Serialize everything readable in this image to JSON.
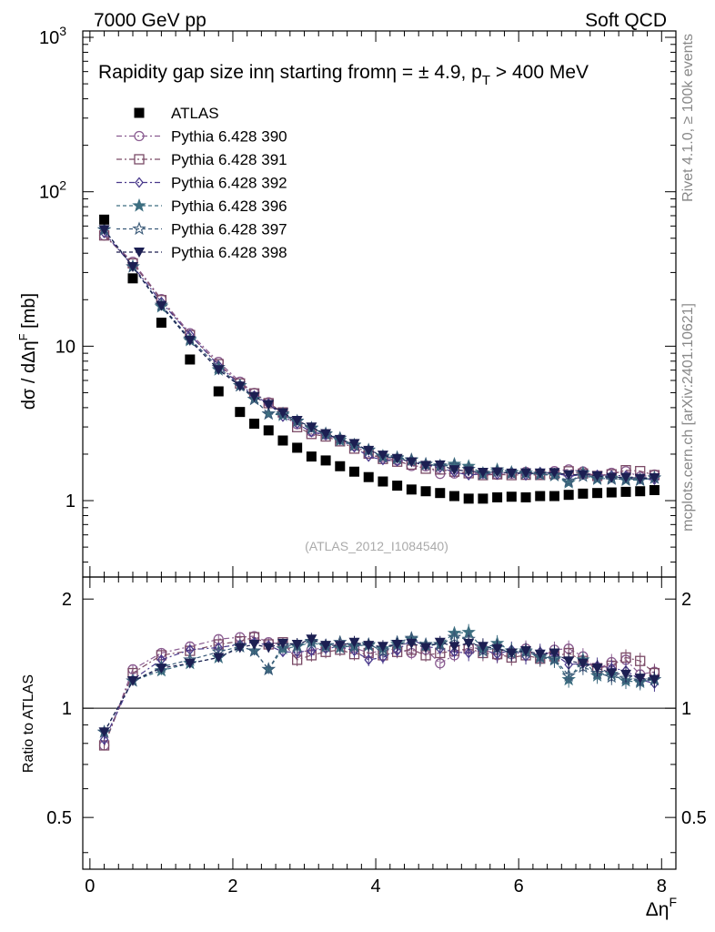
{
  "header": {
    "left": "7000 GeV pp",
    "right": "Soft QCD"
  },
  "side": {
    "rivet": "Rivet 4.1.0, ≥ 100k events",
    "mcplots": "mcplots.cern.ch [arXiv:2401.10621]"
  },
  "chart_data": {
    "type": "line",
    "title_parts": {
      "main": "Rapidity gap size in",
      "eta1": "η",
      "mid": " starting from",
      "eta2": "η",
      "cond": " = ± 4.9, p",
      "sub": "T",
      "tail": " > 400 MeV"
    },
    "analysis_label": "(ATLAS_2012_I1084540)",
    "xlabel": "Δη",
    "xlabel_sup": "F",
    "ylabel_main": "dσ / dΔη",
    "ylabel_sup": "F",
    "ylabel_unit": " [mb]",
    "ratio_ylabel": "Ratio to ATLAS",
    "xlim": [
      -0.1,
      8.2
    ],
    "ylim": [
      0.32,
      1100
    ],
    "ratio_ylim": [
      0.36,
      2.3
    ],
    "yscale": "log",
    "x_ticks": [
      0,
      2,
      4,
      6,
      8
    ],
    "y_tick_labels": [
      {
        "value": 1,
        "label": "1"
      },
      {
        "value": 10,
        "label": "10"
      },
      {
        "value": 100,
        "label": "10",
        "sup": "2"
      },
      {
        "value": 1000,
        "label": "10",
        "sup": "3"
      }
    ],
    "ratio_tick_labels": [
      {
        "value": 0.5,
        "label": "0.5"
      },
      {
        "value": 1,
        "label": "1"
      },
      {
        "value": 2,
        "label": "2"
      }
    ],
    "x": [
      0.2,
      0.6,
      1.0,
      1.4,
      1.8,
      2.1,
      2.3,
      2.5,
      2.7,
      2.9,
      3.1,
      3.3,
      3.5,
      3.7,
      3.9,
      4.1,
      4.3,
      4.5,
      4.7,
      4.9,
      5.1,
      5.3,
      5.5,
      5.7,
      5.9,
      6.1,
      6.3,
      6.5,
      6.7,
      6.9,
      7.1,
      7.3,
      7.5,
      7.7,
      7.9
    ],
    "reference": {
      "name": "ATLAS",
      "values": [
        66,
        27.5,
        14.2,
        8.2,
        5.1,
        3.75,
        3.15,
        2.85,
        2.45,
        2.2,
        1.93,
        1.82,
        1.67,
        1.54,
        1.42,
        1.33,
        1.25,
        1.18,
        1.15,
        1.12,
        1.07,
        1.03,
        1.03,
        1.05,
        1.06,
        1.05,
        1.07,
        1.07,
        1.09,
        1.11,
        1.12,
        1.13,
        1.14,
        1.15,
        1.17
      ]
    },
    "series": [
      {
        "name": "Pythia 6.428 390",
        "marker": "circle-open",
        "color": "#8a5c91",
        "dash": "6,3,2,3",
        "ratio": [
          0.79,
          1.28,
          1.42,
          1.48,
          1.55,
          1.57,
          1.58,
          1.52,
          1.5,
          1.42,
          1.45,
          1.47,
          1.49,
          1.47,
          1.42,
          1.44,
          1.46,
          1.42,
          1.45,
          1.33,
          1.4,
          1.47,
          1.46,
          1.4,
          1.41,
          1.46,
          1.38,
          1.45,
          1.46,
          1.39,
          1.28,
          1.34,
          1.36,
          1.24,
          1.26
        ]
      },
      {
        "name": "Pythia 6.428 391",
        "marker": "square-open",
        "color": "#7a4a66",
        "dash": "6,3,2,3",
        "ratio": [
          0.79,
          1.25,
          1.4,
          1.44,
          1.5,
          1.53,
          1.57,
          1.5,
          1.52,
          1.36,
          1.4,
          1.43,
          1.45,
          1.41,
          1.42,
          1.4,
          1.43,
          1.45,
          1.4,
          1.42,
          1.44,
          1.46,
          1.42,
          1.41,
          1.38,
          1.4,
          1.37,
          1.39,
          1.42,
          1.35,
          1.29,
          1.31,
          1.38,
          1.35,
          1.25
        ]
      },
      {
        "name": "Pythia 6.428 392",
        "marker": "diamond-open",
        "color": "#4a3a8c",
        "dash": "6,3,2,3",
        "ratio": [
          0.82,
          1.2,
          1.36,
          1.45,
          1.47,
          1.5,
          1.52,
          1.49,
          1.43,
          1.43,
          1.44,
          1.46,
          1.48,
          1.44,
          1.36,
          1.38,
          1.44,
          1.55,
          1.48,
          1.46,
          1.43,
          1.42,
          1.45,
          1.41,
          1.45,
          1.39,
          1.43,
          1.41,
          1.32,
          1.33,
          1.31,
          1.29,
          1.27,
          1.2,
          1.17
        ]
      },
      {
        "name": "Pythia 6.428 396",
        "marker": "star-filled",
        "color": "#3d6e80",
        "dash": "4,3",
        "ratio": [
          0.86,
          1.19,
          1.27,
          1.33,
          1.38,
          1.48,
          1.44,
          1.28,
          1.46,
          1.48,
          1.52,
          1.48,
          1.47,
          1.49,
          1.49,
          1.46,
          1.5,
          1.55,
          1.49,
          1.5,
          1.61,
          1.62,
          1.46,
          1.51,
          1.44,
          1.44,
          1.38,
          1.36,
          1.2,
          1.36,
          1.23,
          1.24,
          1.19,
          1.18,
          1.2
        ]
      },
      {
        "name": "Pythia 6.428 397",
        "marker": "star-open",
        "color": "#3a5a78",
        "dash": "4,3",
        "ratio": [
          0.86,
          1.19,
          1.3,
          1.36,
          1.43,
          1.48,
          1.44,
          1.28,
          1.49,
          1.49,
          1.53,
          1.49,
          1.52,
          1.48,
          1.5,
          1.44,
          1.52,
          1.56,
          1.5,
          1.5,
          1.57,
          1.55,
          1.44,
          1.47,
          1.42,
          1.43,
          1.39,
          1.37,
          1.23,
          1.3,
          1.25,
          1.22,
          1.21,
          1.19,
          1.2
        ]
      },
      {
        "name": "Pythia 6.428 398",
        "marker": "triangle-down",
        "color": "#1c1f52",
        "dash": "4,3",
        "ratio": [
          0.86,
          1.19,
          1.29,
          1.33,
          1.38,
          1.47,
          1.5,
          1.47,
          1.51,
          1.5,
          1.55,
          1.49,
          1.49,
          1.52,
          1.49,
          1.48,
          1.5,
          1.51,
          1.47,
          1.52,
          1.48,
          1.51,
          1.48,
          1.46,
          1.42,
          1.44,
          1.41,
          1.42,
          1.35,
          1.33,
          1.29,
          1.25,
          1.24,
          1.21,
          1.2
        ]
      }
    ]
  }
}
